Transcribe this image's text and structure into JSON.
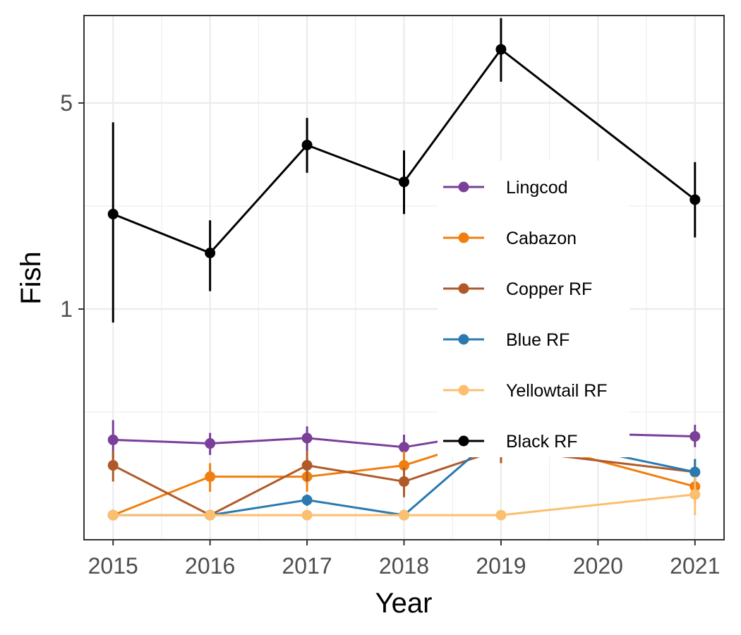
{
  "chart_data": {
    "type": "line",
    "xlabel": "Year",
    "ylabel": "Fish",
    "y_scale": "log10",
    "xlim": [
      2014.7,
      2021.3
    ],
    "ylim": [
      0.165,
      9.9
    ],
    "x_ticks": [
      2015,
      2016,
      2017,
      2018,
      2019,
      2020,
      2021
    ],
    "y_ticks": [
      1,
      5
    ],
    "grid": true,
    "legend_position": "right",
    "series": [
      {
        "name": "Lingcod",
        "color": "#7a3f98",
        "points": [
          {
            "x": 2015,
            "y": 0.36,
            "lo": 0.31,
            "hi": 0.42
          },
          {
            "x": 2016,
            "y": 0.35,
            "lo": 0.32,
            "hi": 0.38
          },
          {
            "x": 2017,
            "y": 0.365,
            "lo": 0.33,
            "hi": 0.4
          },
          {
            "x": 2018,
            "y": 0.34,
            "lo": 0.31,
            "hi": 0.375
          },
          {
            "x": 2019,
            "y": 0.385,
            "lo": 0.35,
            "hi": 0.42
          },
          {
            "x": 2021,
            "y": 0.37,
            "lo": 0.34,
            "hi": 0.405
          }
        ]
      },
      {
        "name": "Cabazon",
        "color": "#f07f10",
        "points": [
          {
            "x": 2015,
            "y": 0.2,
            "lo": 0.2,
            "hi": 0.2
          },
          {
            "x": 2016,
            "y": 0.27,
            "lo": 0.24,
            "hi": 0.3
          },
          {
            "x": 2017,
            "y": 0.27,
            "lo": 0.24,
            "hi": 0.3
          },
          {
            "x": 2018,
            "y": 0.295,
            "lo": 0.26,
            "hi": 0.33
          },
          {
            "x": 2019,
            "y": 0.375,
            "lo": 0.34,
            "hi": 0.41
          },
          {
            "x": 2021,
            "y": 0.25,
            "lo": 0.22,
            "hi": 0.28
          }
        ]
      },
      {
        "name": "Copper RF",
        "color": "#b05a2a",
        "points": [
          {
            "x": 2015,
            "y": 0.295,
            "lo": 0.26,
            "hi": 0.33
          },
          {
            "x": 2016,
            "y": 0.2,
            "lo": 0.2,
            "hi": 0.2
          },
          {
            "x": 2017,
            "y": 0.295,
            "lo": 0.26,
            "hi": 0.33
          },
          {
            "x": 2018,
            "y": 0.26,
            "lo": 0.23,
            "hi": 0.29
          },
          {
            "x": 2019,
            "y": 0.335,
            "lo": 0.3,
            "hi": 0.37
          },
          {
            "x": 2021,
            "y": 0.28,
            "lo": 0.25,
            "hi": 0.31
          }
        ]
      },
      {
        "name": "Blue RF",
        "color": "#2a7ab0",
        "points": [
          {
            "x": 2015,
            "y": 0.2,
            "lo": 0.2,
            "hi": 0.2
          },
          {
            "x": 2016,
            "y": 0.2,
            "lo": 0.2,
            "hi": 0.2
          },
          {
            "x": 2017,
            "y": 0.225,
            "lo": 0.215,
            "hi": 0.235
          },
          {
            "x": 2018,
            "y": 0.2,
            "lo": 0.2,
            "hi": 0.2
          },
          {
            "x": 2019,
            "y": 0.385,
            "lo": 0.35,
            "hi": 0.42
          },
          {
            "x": 2021,
            "y": 0.28,
            "lo": 0.25,
            "hi": 0.31
          }
        ]
      },
      {
        "name": "Yellowtail RF",
        "color": "#fbbf6f",
        "points": [
          {
            "x": 2015,
            "y": 0.2,
            "lo": 0.2,
            "hi": 0.2
          },
          {
            "x": 2016,
            "y": 0.2,
            "lo": 0.2,
            "hi": 0.2
          },
          {
            "x": 2017,
            "y": 0.2,
            "lo": 0.2,
            "hi": 0.2
          },
          {
            "x": 2018,
            "y": 0.2,
            "lo": 0.2,
            "hi": 0.2
          },
          {
            "x": 2019,
            "y": 0.2,
            "lo": 0.2,
            "hi": 0.2
          },
          {
            "x": 2021,
            "y": 0.235,
            "lo": 0.2,
            "hi": 0.27
          }
        ]
      },
      {
        "name": "Black RF",
        "color": "#000000",
        "points": [
          {
            "x": 2015,
            "y": 2.1,
            "lo": 0.9,
            "hi": 4.3
          },
          {
            "x": 2016,
            "y": 1.55,
            "lo": 1.15,
            "hi": 2.0
          },
          {
            "x": 2017,
            "y": 3.6,
            "lo": 2.9,
            "hi": 4.45
          },
          {
            "x": 2018,
            "y": 2.7,
            "lo": 2.1,
            "hi": 3.45
          },
          {
            "x": 2019,
            "y": 7.6,
            "lo": 5.9,
            "hi": 9.7
          },
          {
            "x": 2021,
            "y": 2.35,
            "lo": 1.75,
            "hi": 3.15
          }
        ]
      }
    ]
  }
}
